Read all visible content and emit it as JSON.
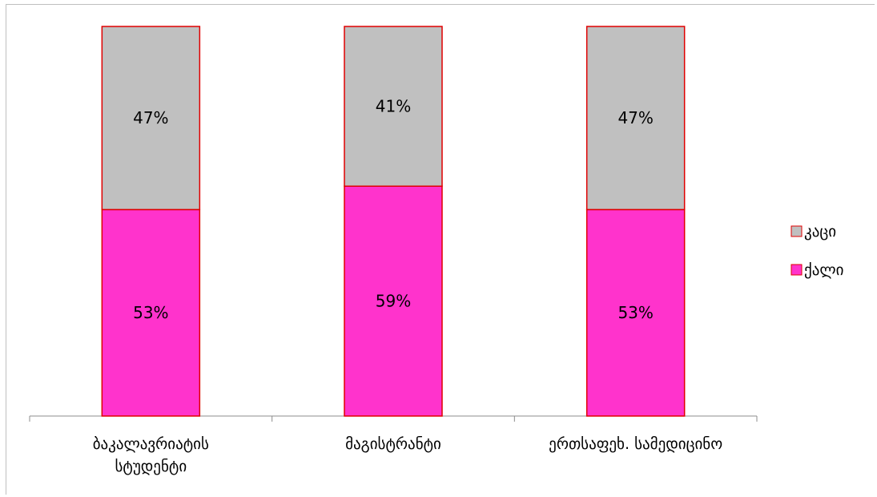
{
  "chart_data": {
    "type": "bar",
    "stacked": true,
    "percent": true,
    "categories": [
      [
        "ბაკალავრიატის",
        "სტუდენტი"
      ],
      [
        "მაგისტრანტი"
      ],
      [
        "ერთსაფეხ. სამედიცინო"
      ]
    ],
    "series": [
      {
        "name": "ქალი",
        "values": [
          53,
          59,
          53
        ],
        "labels": [
          "53%",
          "59%",
          "53%"
        ],
        "color": "#ff33cc"
      },
      {
        "name": "კაცი",
        "values": [
          47,
          41,
          47
        ],
        "labels": [
          "47%",
          "41%",
          "47%"
        ],
        "color": "#c0c0c0"
      }
    ],
    "ylim": [
      0,
      100
    ],
    "grid": false,
    "legend": "right",
    "legend_order": [
      "კაცი",
      "ქალი"
    ],
    "bar_border_color": "#e00000"
  }
}
